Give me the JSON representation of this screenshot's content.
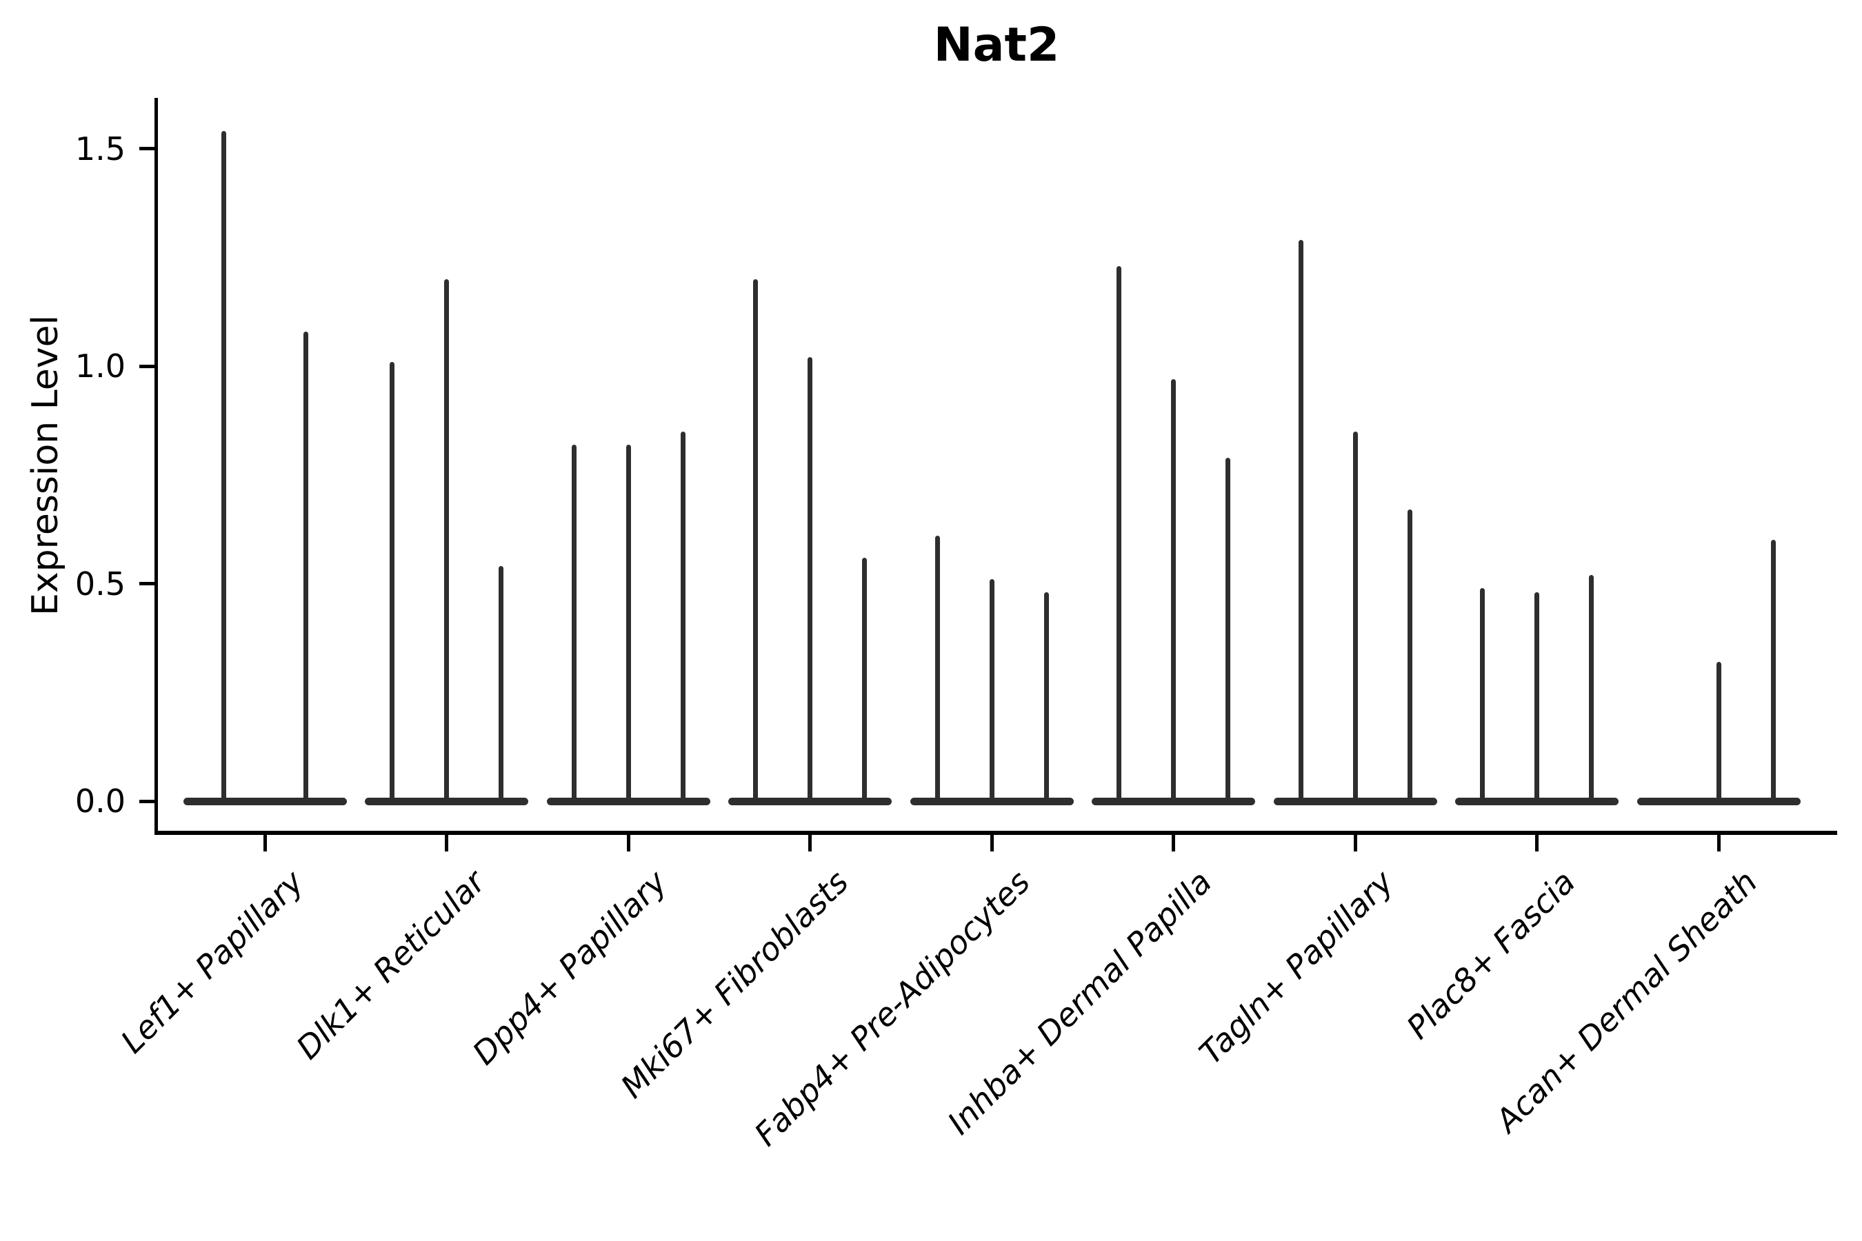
{
  "title": "Nat2",
  "y_axis": {
    "label": "Expression Level",
    "tick_labels": [
      "0.0",
      "0.5",
      "1.0",
      "1.5"
    ]
  },
  "chart_data": {
    "type": "violin",
    "title": "Nat2",
    "xlabel": "",
    "ylabel": "Expression Level",
    "ylim": [
      0,
      1.61
    ],
    "yticks": [
      0.0,
      0.5,
      1.0,
      1.5
    ],
    "ytick_labels": [
      "0.0",
      "0.5",
      "1.0",
      "1.5"
    ],
    "grid": false,
    "legend_position": "none",
    "violin_color": "#2e2e2e",
    "axis_color": "#000000",
    "description": "Violin plot of Nat2 expression; each cluster holds narrow spike-shaped violins whose bulk sits at 0 and whose thin spike reaches the maximum expression value listed.",
    "categories": [
      "Lef1+ Papillary",
      "Dlk1+ Reticular",
      "Dpp4+ Papillary",
      "Mki67+ Fibroblasts",
      "Fabp4+ Pre-Adipocytes",
      "Inhba+ Dermal Papilla",
      "Tagln+ Papillary",
      "Plac8+ Fascia",
      "Acan+ Dermal Sheath"
    ],
    "groups": [
      {
        "label": "Lef1+ Papillary",
        "spike_max_values": [
          1.54,
          1.08
        ]
      },
      {
        "label": "Dlk1+ Reticular",
        "spike_max_values": [
          1.01,
          1.2,
          0.54
        ]
      },
      {
        "label": "Dpp4+ Papillary",
        "spike_max_values": [
          0.82,
          0.82,
          0.85
        ]
      },
      {
        "label": "Mki67+ Fibroblasts",
        "spike_max_values": [
          1.2,
          1.02,
          0.56
        ]
      },
      {
        "label": "Fabp4+ Pre-Adipocytes",
        "spike_max_values": [
          0.61,
          0.51,
          0.48
        ]
      },
      {
        "label": "Inhba+ Dermal Papilla",
        "spike_max_values": [
          1.23,
          0.97,
          0.79
        ]
      },
      {
        "label": "Tagln+ Papillary",
        "spike_max_values": [
          1.29,
          0.85,
          0.67
        ]
      },
      {
        "label": "Plac8+ Fascia",
        "spike_max_values": [
          0.49,
          0.48,
          0.52
        ]
      },
      {
        "label": "Acan+ Dermal Sheath",
        "spike_max_values": [
          0.0,
          0.32,
          0.6
        ]
      }
    ]
  }
}
